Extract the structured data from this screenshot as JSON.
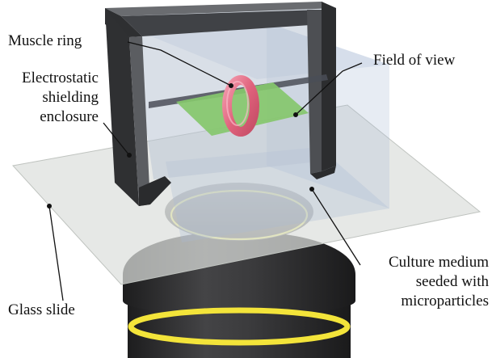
{
  "labels": {
    "muscle_ring": "Muscle ring",
    "field_of_view": "Field of view",
    "enclosure_line1": "Electrostatic",
    "enclosure_line2": "shielding",
    "enclosure_line3": "enclosure",
    "glass_slide": "Glass slide",
    "medium_line1": "Culture medium",
    "medium_line2": "seeded with",
    "medium_line3": "microparticles"
  },
  "colors": {
    "enclosure": "#3a3b3d",
    "enclosure_light": "#55575a",
    "glass": "#dcdfdc",
    "field_of_view": "#a9bad4",
    "green_substrate": "#86c76d",
    "muscle_ring": "#e66f87",
    "objective_body": "#2f2f30",
    "objective_band": "#f3e43a",
    "ring_outline": "#eef07a"
  }
}
